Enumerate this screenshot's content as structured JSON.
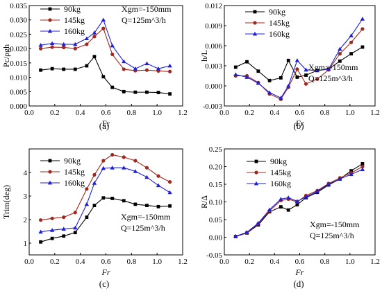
{
  "colors": {
    "90kg": "#000000",
    "145kg": "#a0281e",
    "160kg": "#1f1fd6"
  },
  "chart_data": [
    {
      "panel": "(a)",
      "type": "line",
      "xlabel": "Fr",
      "ylabel": "Pc/ρgh",
      "xlim": [
        0.0,
        1.2
      ],
      "ylim": [
        0.0,
        0.035
      ],
      "xticks": [
        "0.0",
        "0.2",
        "0.4",
        "0.6",
        "0.8",
        "1.0",
        "1.2"
      ],
      "yticks": [
        "0.000",
        "0.005",
        "0.010",
        "0.015",
        "0.020",
        "0.025",
        "0.030",
        "0.035"
      ],
      "legend_position": "top-left",
      "annotations": [
        "Xgm=-150mm",
        "Q=125m^3/h"
      ],
      "series": [
        {
          "name": "90kg",
          "marker": "square",
          "x": [
            0.09,
            0.18,
            0.27,
            0.36,
            0.45,
            0.51,
            0.58,
            0.65,
            0.74,
            0.83,
            0.92,
            1.01,
            1.1
          ],
          "y": [
            0.0125,
            0.013,
            0.0128,
            0.0128,
            0.014,
            0.0172,
            0.0102,
            0.0065,
            0.005,
            0.0048,
            0.0048,
            0.0047,
            0.0042
          ]
        },
        {
          "name": "145kg",
          "marker": "circle",
          "x": [
            0.09,
            0.18,
            0.27,
            0.36,
            0.45,
            0.51,
            0.58,
            0.65,
            0.74,
            0.83,
            0.92,
            1.01,
            1.1
          ],
          "y": [
            0.02,
            0.0205,
            0.0204,
            0.02,
            0.0215,
            0.0242,
            0.027,
            0.018,
            0.0128,
            0.0123,
            0.0125,
            0.0122,
            0.012
          ]
        },
        {
          "name": "160kg",
          "marker": "triangle",
          "x": [
            0.09,
            0.18,
            0.27,
            0.36,
            0.45,
            0.51,
            0.58,
            0.65,
            0.74,
            0.83,
            0.92,
            1.01,
            1.1
          ],
          "y": [
            0.0212,
            0.0218,
            0.0215,
            0.0215,
            0.0235,
            0.0255,
            0.03,
            0.021,
            0.0155,
            0.013,
            0.0148,
            0.013,
            0.014
          ]
        }
      ]
    },
    {
      "panel": "(b)",
      "type": "line",
      "xlabel": "Fr",
      "ylabel": "h/L",
      "xlim": [
        0.0,
        1.2
      ],
      "ylim": [
        -0.003,
        0.012
      ],
      "xticks": [
        "0.0",
        "0.2",
        "0.4",
        "0.6",
        "0.8",
        "1.0",
        "1.2"
      ],
      "yticks": [
        "-0.003",
        "0.000",
        "0.003",
        "0.006",
        "0.009",
        "0.012"
      ],
      "legend_position": "top-left",
      "annotations": [
        "Xgm=-150mm",
        "Q=125m^3/h"
      ],
      "series": [
        {
          "name": "90kg",
          "marker": "square",
          "x": [
            0.09,
            0.18,
            0.27,
            0.36,
            0.45,
            0.51,
            0.58,
            0.65,
            0.74,
            0.83,
            0.92,
            1.01,
            1.1
          ],
          "y": [
            0.0028,
            0.0036,
            0.0022,
            0.0008,
            0.0012,
            0.0038,
            0.0013,
            0.0016,
            0.0023,
            0.0025,
            0.0037,
            0.0048,
            0.0058
          ]
        },
        {
          "name": "145kg",
          "marker": "circle",
          "x": [
            0.09,
            0.18,
            0.27,
            0.36,
            0.45,
            0.51,
            0.58,
            0.65,
            0.74,
            0.83,
            0.92,
            1.01,
            1.1
          ],
          "y": [
            0.0015,
            0.0015,
            0.0005,
            -0.0012,
            -0.002,
            -0.0002,
            0.0025,
            0.0003,
            0.001,
            0.0024,
            0.0048,
            0.0065,
            0.0085
          ]
        },
        {
          "name": "160kg",
          "marker": "triangle",
          "x": [
            0.09,
            0.18,
            0.27,
            0.36,
            0.45,
            0.51,
            0.58,
            0.65,
            0.74,
            0.83,
            0.92,
            1.01,
            1.1
          ],
          "y": [
            0.0017,
            0.0013,
            0.0004,
            -0.001,
            -0.0018,
            0.0,
            0.0038,
            0.0024,
            0.0023,
            0.0025,
            0.0055,
            0.0075,
            0.01
          ]
        }
      ]
    },
    {
      "panel": "(c)",
      "type": "line",
      "xlabel": "Fr",
      "ylabel": "Trim(deg)",
      "xlim": [
        0.0,
        1.2
      ],
      "ylim": [
        0.5,
        5.0
      ],
      "xticks": [
        "0.0",
        "0.2",
        "0.4",
        "0.6",
        "0.8",
        "1.0",
        "1.2"
      ],
      "yticks": [
        "1",
        "2",
        "3",
        "4"
      ],
      "legend_position": "top-left",
      "annotations": [
        "Xgm=-150mm",
        "Q=125m^3/h"
      ],
      "series": [
        {
          "name": "90kg",
          "marker": "square",
          "x": [
            0.09,
            0.18,
            0.27,
            0.36,
            0.45,
            0.51,
            0.58,
            0.65,
            0.74,
            0.83,
            0.92,
            1.01,
            1.1
          ],
          "y": [
            1.05,
            1.2,
            1.3,
            1.45,
            2.1,
            2.6,
            2.92,
            2.9,
            2.8,
            2.65,
            2.6,
            2.55,
            2.58
          ]
        },
        {
          "name": "145kg",
          "marker": "circle",
          "x": [
            0.09,
            0.18,
            0.27,
            0.36,
            0.45,
            0.51,
            0.58,
            0.65,
            0.74,
            0.83,
            0.92,
            1.01,
            1.1
          ],
          "y": [
            1.98,
            2.05,
            2.1,
            2.3,
            3.3,
            3.9,
            4.5,
            4.75,
            4.65,
            4.5,
            4.2,
            3.85,
            3.6
          ]
        },
        {
          "name": "160kg",
          "marker": "triangle",
          "x": [
            0.09,
            0.18,
            0.27,
            0.36,
            0.45,
            0.51,
            0.58,
            0.65,
            0.74,
            0.83,
            0.92,
            1.01,
            1.1
          ],
          "y": [
            1.48,
            1.55,
            1.6,
            1.65,
            2.65,
            3.55,
            4.18,
            4.2,
            4.2,
            4.05,
            3.8,
            3.45,
            3.15
          ]
        }
      ]
    },
    {
      "panel": "(d)",
      "type": "line",
      "xlabel": "Fr",
      "ylabel": "R/Δ",
      "xlim": [
        0.0,
        1.2
      ],
      "ylim": [
        -0.05,
        0.25
      ],
      "xticks": [
        "0.0",
        "0.2",
        "0.4",
        "0.6",
        "0.8",
        "1.0",
        "1.2"
      ],
      "yticks": [
        "-0.05",
        "0.00",
        "0.05",
        "0.10",
        "0.15",
        "0.20",
        "0.25"
      ],
      "legend_position": "top-left",
      "annotations": [
        "Xgm=-150mm",
        "Q=125m^3/h"
      ],
      "series": [
        {
          "name": "90kg",
          "marker": "square",
          "x": [
            0.09,
            0.18,
            0.27,
            0.36,
            0.45,
            0.51,
            0.58,
            0.65,
            0.74,
            0.83,
            0.92,
            1.01,
            1.1
          ],
          "y": [
            0.002,
            0.012,
            0.035,
            0.072,
            0.086,
            0.077,
            0.092,
            0.112,
            0.127,
            0.148,
            0.165,
            0.188,
            0.208
          ]
        },
        {
          "name": "145kg",
          "marker": "circle",
          "x": [
            0.09,
            0.18,
            0.27,
            0.36,
            0.45,
            0.51,
            0.58,
            0.65,
            0.74,
            0.83,
            0.92,
            1.01,
            1.1
          ],
          "y": [
            0.002,
            0.013,
            0.038,
            0.075,
            0.104,
            0.108,
            0.1,
            0.118,
            0.132,
            0.152,
            0.168,
            0.182,
            0.2
          ]
        },
        {
          "name": "160kg",
          "marker": "triangle",
          "x": [
            0.09,
            0.18,
            0.27,
            0.36,
            0.45,
            0.51,
            0.58,
            0.65,
            0.74,
            0.83,
            0.92,
            1.01,
            1.1
          ],
          "y": [
            0.003,
            0.014,
            0.04,
            0.078,
            0.108,
            0.112,
            0.102,
            0.114,
            0.13,
            0.15,
            0.165,
            0.178,
            0.192
          ]
        }
      ]
    }
  ]
}
